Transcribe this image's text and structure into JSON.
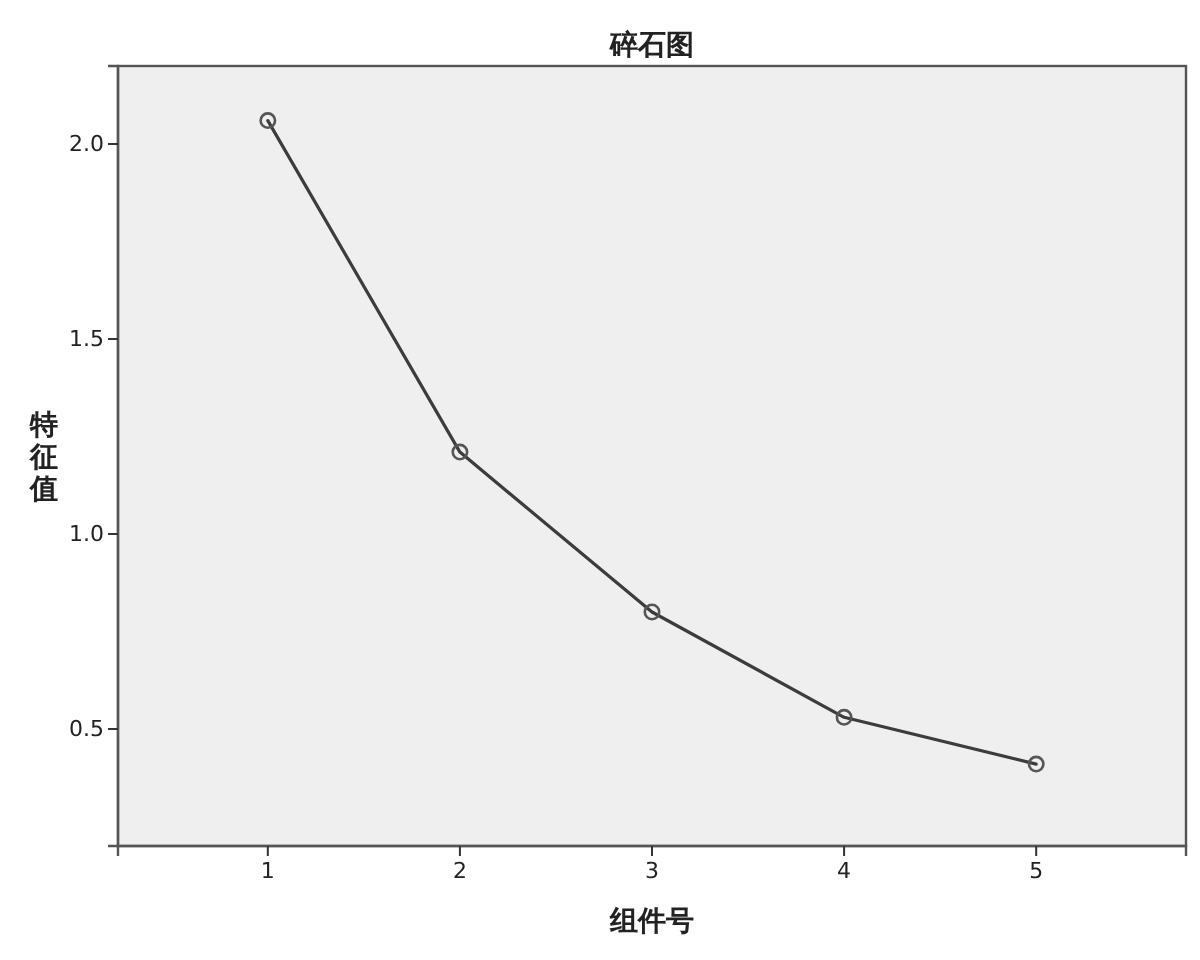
{
  "chart_data": {
    "type": "line",
    "title": "碎石图",
    "xlabel": "组件号",
    "ylabel": "特征值",
    "x": [
      1,
      2,
      3,
      4,
      5
    ],
    "values": [
      2.06,
      1.21,
      0.8,
      0.53,
      0.41
    ],
    "color": "#3c3c3c",
    "xlim": [
      0.22,
      5.78
    ],
    "ylim": [
      0.2,
      2.2
    ],
    "xticks": [
      1,
      2,
      3,
      4,
      5
    ],
    "yticks": [
      {
        "value": 0.5,
        "label": "0.5"
      },
      {
        "value": 1,
        "label": "1.0"
      },
      {
        "value": 1.5,
        "label": "1.5"
      },
      {
        "value": 2,
        "label": "2.0"
      }
    ],
    "marker": "circle"
  }
}
